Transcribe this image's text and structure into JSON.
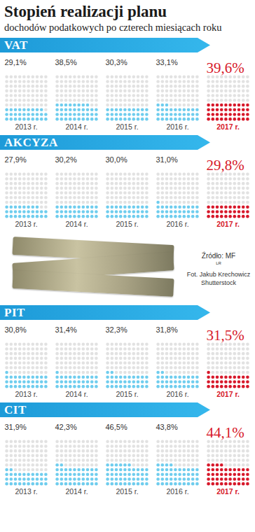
{
  "title": "Stopień realizacji planu",
  "subtitle": "dochodów podatkowych po czterech miesiącach roku",
  "source": "Źródło: MF",
  "author": "LR",
  "credit": "Fot. Jakub Krechowicz Shutterstock",
  "chart_data": [
    {
      "type": "waffle",
      "title": "VAT",
      "categories": [
        "2013 r.",
        "2014 r.",
        "2015 r.",
        "2016 r.",
        "2017 r."
      ],
      "values": [
        29.1,
        38.5,
        30.3,
        33.1,
        39.6
      ],
      "value_labels": [
        "29,1%",
        "38,5%",
        "30,3%",
        "33,1%",
        "39,6%"
      ],
      "colors": [
        "#6fcdee",
        "#6fcdee",
        "#6fcdee",
        "#6fcdee",
        "#d7182a"
      ],
      "data_labels": true
    },
    {
      "type": "waffle",
      "title": "AKCYZA",
      "categories": [
        "2013 r.",
        "2014 r.",
        "2015 r.",
        "2016 r.",
        "2017 r."
      ],
      "values": [
        27.9,
        30.2,
        30.0,
        31.0,
        29.8
      ],
      "value_labels": [
        "27,9%",
        "30,2%",
        "30,0%",
        "31,0%",
        "29,8%"
      ],
      "colors": [
        "#6fcdee",
        "#6fcdee",
        "#6fcdee",
        "#6fcdee",
        "#d7182a"
      ],
      "data_labels": true
    },
    {
      "type": "waffle",
      "title": "PIT",
      "categories": [
        "2013 r.",
        "2014 r.",
        "2015 r.",
        "2016 r.",
        "2017 r."
      ],
      "values": [
        30.8,
        31.4,
        32.3,
        31.8,
        31.5
      ],
      "value_labels": [
        "30,8%",
        "31,4%",
        "32,3%",
        "31,8%",
        "31,5%"
      ],
      "colors": [
        "#6fcdee",
        "#6fcdee",
        "#6fcdee",
        "#6fcdee",
        "#d7182a"
      ],
      "data_labels": true
    },
    {
      "type": "waffle",
      "title": "CIT",
      "categories": [
        "2013 r.",
        "2014 r.",
        "2015 r.",
        "2016 r.",
        "2017 r."
      ],
      "values": [
        31.9,
        42.3,
        46.5,
        43.8,
        44.1
      ],
      "value_labels": [
        "31,9%",
        "42,3%",
        "46,5%",
        "43,8%",
        "44,1%"
      ],
      "colors": [
        "#6fcdee",
        "#6fcdee",
        "#6fcdee",
        "#6fcdee",
        "#d7182a"
      ],
      "data_labels": true
    }
  ]
}
